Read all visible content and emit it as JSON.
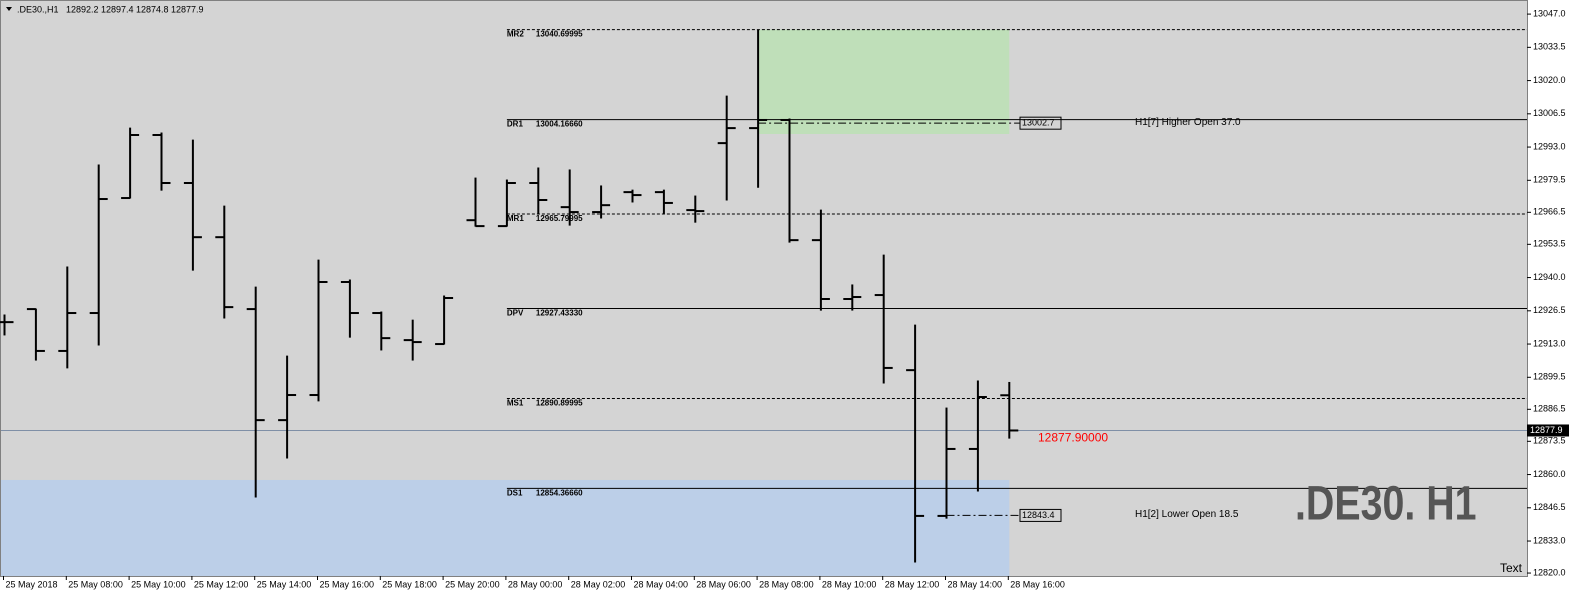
{
  "chart_data": {
    "type": "ohlc",
    "title": ".DE30.,H1",
    "categories": [
      "25 May 2018",
      null,
      "25 May 08:00",
      null,
      "25 May 10:00",
      null,
      "25 May 12:00",
      null,
      "25 May 14:00",
      null,
      "25 May 16:00",
      null,
      "25 May 18:00",
      null,
      "25 May 20:00",
      null,
      "28 May 00:00",
      null,
      "28 May 02:00",
      null,
      "28 May 04:00",
      null,
      "28 May 06:00",
      null,
      "28 May 08:00",
      null,
      "28 May 10:00",
      null,
      "28 May 12:00",
      null,
      "28 May 14:00",
      null,
      "28 May 16:00"
    ],
    "open": [
      12921.9,
      12927.2,
      12910.2,
      12925.6,
      12972.3,
      12997.9,
      12978.4,
      12956.4,
      12927.2,
      12882.1,
      12892.3,
      12938.2,
      12925.6,
      12914.6,
      12913.0,
      12963.3,
      12960.9,
      12978.4,
      12968.6,
      12966.6,
      12974.7,
      12974.7,
      12967.4,
      12994.6,
      13000.7,
      13004.0,
      12955.2,
      12931.3,
      12932.9,
      12902.4,
      12843.2,
      12870.4,
      12892.2
    ],
    "high": [
      12924.8,
      12927.2,
      12944.3,
      12985.7,
      13000.7,
      12998.7,
      12995.8,
      12969.0,
      12936.1,
      12908.1,
      12947.1,
      12939.0,
      12926.0,
      12922.7,
      12932.5,
      12980.4,
      12979.6,
      12984.5,
      12983.7,
      12977.2,
      12975.5,
      12975.5,
      12973.1,
      13013.7,
      13040.5,
      13004.4,
      12967.4,
      12937.0,
      12949.1,
      12920.7,
      12887.0,
      12898.0,
      12897.4
    ],
    "low": [
      12916.7,
      12906.5,
      12903.3,
      12912.6,
      12972.3,
      12975.5,
      12943.0,
      12923.6,
      12850.9,
      12866.7,
      12889.9,
      12915.8,
      12910.6,
      12906.5,
      12913.0,
      12960.9,
      12960.9,
      12965.8,
      12961.3,
      12964.2,
      12970.7,
      12966.2,
      12962.5,
      12971.5,
      12976.7,
      12954.4,
      12926.8,
      12926.8,
      12897.2,
      12824.5,
      12842.3,
      12853.3,
      12874.8
    ],
    "close": [
      12921.9,
      12910.2,
      12925.6,
      12971.9,
      12997.9,
      12978.4,
      12956.4,
      12928.0,
      12882.1,
      12892.3,
      12938.2,
      12925.6,
      12915.4,
      12913.8,
      12931.7,
      12960.9,
      12978.4,
      12971.5,
      12966.6,
      12969.4,
      12973.5,
      12970.3,
      12967.0,
      13000.7,
      13004.0,
      12955.2,
      12931.3,
      12932.1,
      12903.3,
      12843.2,
      12870.4,
      12891.5,
      12877.9
    ],
    "color": "#000000",
    "ylim": [
      12818.8,
      13051.1
    ],
    "yticks": [
      {
        "value": 13047.0,
        "label": "13047.0"
      },
      13033.5,
      {
        "value": 13020.0,
        "label": "13020.0"
      },
      13006.5,
      {
        "value": 12993.0,
        "label": "12993.0"
      },
      12979.5,
      12966.5,
      12953.5,
      {
        "value": 12940.0,
        "label": "12940.0"
      },
      12926.5,
      {
        "value": 12913.0,
        "label": "12913.0"
      },
      12899.5,
      12886.5,
      12873.5,
      {
        "value": 12860.0,
        "label": "12860.0"
      },
      12846.5,
      {
        "value": 12833.0,
        "label": "12833.0"
      },
      {
        "value": 12820.0,
        "label": "12820.0"
      }
    ],
    "levels": [
      {
        "name": "MR2",
        "value": 13040.69995,
        "label": "13040.69995",
        "style": "dashed"
      },
      {
        "name": "DR1",
        "value": 13004.1666,
        "label": "13004.16660",
        "style": "solid"
      },
      {
        "name": "MR1",
        "value": 12965.79995,
        "label": "12965.79995",
        "style": "dashed"
      },
      {
        "name": "DPV",
        "value": 12927.4333,
        "label": "12927.43330",
        "style": "solid"
      },
      {
        "name": "MS1",
        "value": 12890.89995,
        "label": "12890.89995",
        "style": "dashed"
      },
      {
        "name": "DS1",
        "value": 12854.3666,
        "label": "12854.36660",
        "style": "solid"
      }
    ],
    "zones": [
      {
        "color": "#bfdfb9",
        "from": 24,
        "to": 32,
        "top": 13040.7,
        "bottom": 12998.3
      },
      {
        "color": "#bccfe8",
        "from": 0,
        "to": 32,
        "top": 12857.8,
        "bottom": 12818.8
      }
    ],
    "opens": [
      {
        "from": 24,
        "value": 13002.7,
        "text": "H1[7] Higher Open 37.0"
      },
      {
        "from": 30,
        "value": 12843.4,
        "text": "H1[2] Lower Open 18.5"
      }
    ],
    "price_label": {
      "value": 12877.9,
      "label": "12877.90000",
      "color": "#ff0000"
    },
    "watermark": ".DE30. H1",
    "corner_text": "Text"
  }
}
